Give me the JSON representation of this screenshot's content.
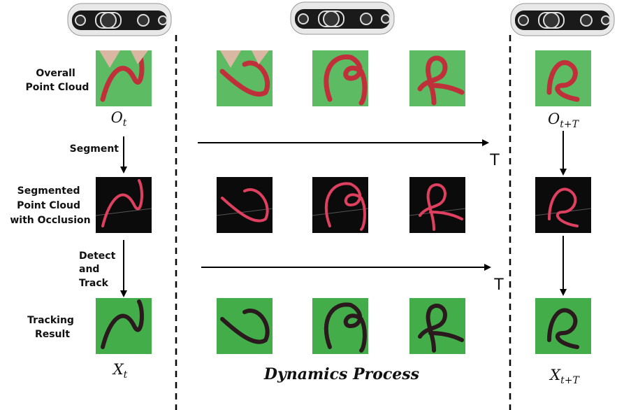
{
  "row_labels": {
    "overall": [
      "Overall",
      "Point Cloud"
    ],
    "segmented": [
      "Segmented",
      "Point Cloud",
      "with Occlusion"
    ],
    "tracking": [
      "Tracking",
      "Result"
    ]
  },
  "arrow_labels": {
    "segment": "Segment",
    "detect": [
      "Detect",
      "and",
      "Track"
    ],
    "t_top": "T",
    "t_bottom": "T"
  },
  "symbols": {
    "o_t": {
      "base": "O",
      "sub": "t"
    },
    "o_tT": {
      "base": "O",
      "sub": "t+T"
    },
    "x_t": {
      "base": "X",
      "sub": "t"
    },
    "x_tT": {
      "base": "X",
      "sub": "t+T"
    }
  },
  "caption": "Dynamics Process"
}
